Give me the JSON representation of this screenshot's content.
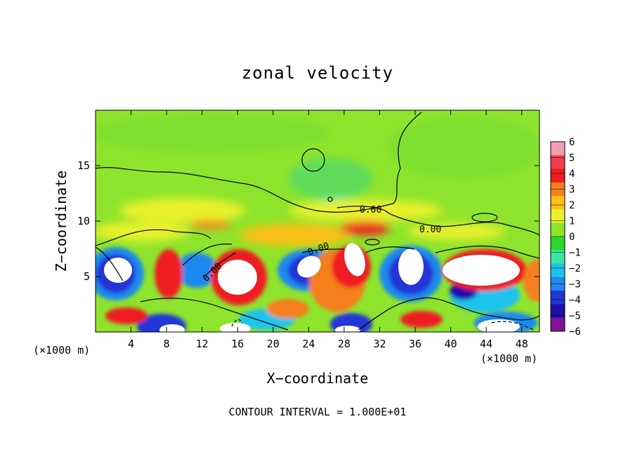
{
  "chart_data": {
    "type": "heatmap",
    "title": "zonal velocity",
    "xlabel": "X−coordinate",
    "ylabel": "Z−coordinate",
    "x_scale_note": "(×1000 m)",
    "x_scale_note_right": "(×1000 m)",
    "xlim": [
      0,
      50
    ],
    "ylim": [
      0,
      20
    ],
    "x_ticks": [
      4,
      8,
      12,
      16,
      20,
      24,
      28,
      32,
      36,
      40,
      44,
      48
    ],
    "y_ticks": [
      5,
      10,
      15
    ],
    "colorbar": {
      "levels": [
        6,
        5,
        4,
        3,
        2,
        1,
        0,
        -1,
        -2,
        -3,
        -4,
        -5,
        -6
      ],
      "labels": [
        "6",
        "5",
        "4",
        "3",
        "2",
        "1",
        "0",
        "−1",
        "−2",
        "−3",
        "−4",
        "−5",
        "−6"
      ],
      "colors": [
        "#f39fae",
        "#f23c4e",
        "#ef1c24",
        "#f57f1f",
        "#fbbf18",
        "#e8f12c",
        "#8ee42c",
        "#2fd62c",
        "#39e6a4",
        "#1ec3ec",
        "#1f89ee",
        "#2234d6",
        "#1f0fa8",
        "#7f1497"
      ]
    },
    "contour_labels": [
      "0.00",
      "0.00",
      "0.00",
      "0.00"
    ],
    "contour_interval_text": "CONTOUR INTERVAL = 1.000E+01",
    "grid": false
  }
}
